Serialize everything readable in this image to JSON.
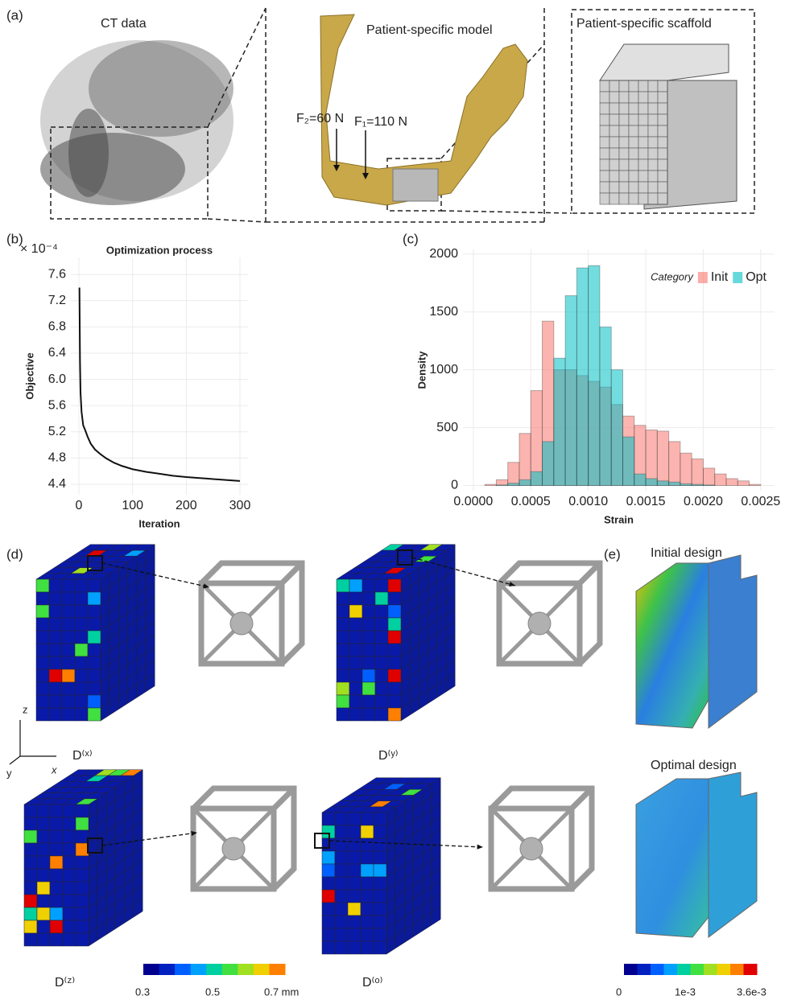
{
  "panel_a": {
    "label": "(a)",
    "ct_title": "CT data",
    "model_title": "Patient-specific model",
    "scaffold_title": "Patient-specific scaffold",
    "forces": [
      "F₂=60 N",
      "F₁=110 N"
    ]
  },
  "chart_data": [
    {
      "type": "line",
      "panel_label": "(b)",
      "title": "Optimization process",
      "x_label": "Iteration",
      "y_label": "Objective",
      "y_scale_label": "× 10⁻⁴",
      "x": [
        1,
        2,
        3,
        5,
        8,
        12,
        16,
        22,
        30,
        40,
        50,
        65,
        80,
        100,
        125,
        150,
        175,
        200,
        250,
        300
      ],
      "values": [
        7.4,
        6.3,
        5.8,
        5.5,
        5.3,
        5.22,
        5.13,
        5.02,
        4.93,
        4.86,
        4.8,
        4.73,
        4.68,
        4.63,
        4.59,
        4.56,
        4.53,
        4.51,
        4.48,
        4.45
      ],
      "color": "#111111",
      "xlim": [
        -15,
        315
      ],
      "ylim": [
        4.24,
        7.86
      ],
      "xticks": [
        0,
        100,
        200,
        300
      ],
      "yticks": [
        4.4,
        4.8,
        5.2,
        5.6,
        {
          "value": 6,
          "label": "6.0"
        },
        6.4,
        6.8,
        7.2,
        7.6
      ],
      "grid": true
    },
    {
      "type": "histogram",
      "panel_label": "(c)",
      "x_label": "Strain",
      "y_label": "Density",
      "legend_title": "Category",
      "legend_position": "top-right",
      "bins": [
        0,
        0.0001,
        0.0002,
        0.0003,
        0.0004,
        0.0005,
        0.0006,
        0.0007,
        0.0008,
        0.0009,
        0.001,
        0.0011,
        0.0012,
        0.0013,
        0.0014,
        0.0015,
        0.0016,
        0.0017,
        0.0018,
        0.0019,
        0.002,
        0.0021,
        0.0022,
        0.0023,
        0.0024,
        0.0025
      ],
      "series": [
        {
          "name": "Init",
          "color": "#f8766d",
          "values": [
            0,
            10,
            50,
            200,
            450,
            820,
            1420,
            1000,
            1000,
            950,
            900,
            850,
            700,
            600,
            520,
            480,
            470,
            380,
            280,
            230,
            150,
            100,
            60,
            40,
            10
          ]
        },
        {
          "name": "Opt",
          "color": "#00bfc4",
          "values": [
            0,
            0,
            5,
            20,
            50,
            120,
            380,
            1100,
            1640,
            1880,
            1900,
            1370,
            1000,
            420,
            100,
            60,
            40,
            30,
            15,
            10,
            5,
            0,
            0,
            0,
            0
          ]
        }
      ],
      "xlim": [
        -9e-05,
        0.00262
      ],
      "ylim": [
        -45,
        2040
      ],
      "xticks": [
        {
          "value": 0,
          "label": "0.0000"
        },
        0.0005,
        {
          "value": 0.001,
          "label": "0.0010"
        },
        0.0015,
        {
          "value": 0.002,
          "label": "0.0020"
        },
        0.0025
      ],
      "yticks": [
        0,
        500,
        1000,
        1500,
        2000
      ],
      "grid": true
    }
  ],
  "panel_d": {
    "label": "(d)",
    "designs": [
      "D⁽ˣ⁾",
      "D⁽ʸ⁾",
      "D⁽ᶻ⁾",
      "D⁽ᵒ⁾"
    ],
    "axes": [
      "z",
      "y",
      "x"
    ],
    "colorbar_ticks": [
      "0.3",
      "0.5",
      "0.7 mm"
    ]
  },
  "panel_e": {
    "label": "(e)",
    "titles": [
      "Initial design",
      "Optimal design"
    ],
    "colorbar_ticks": [
      "0",
      "1e-3",
      "3.6e-3"
    ]
  }
}
